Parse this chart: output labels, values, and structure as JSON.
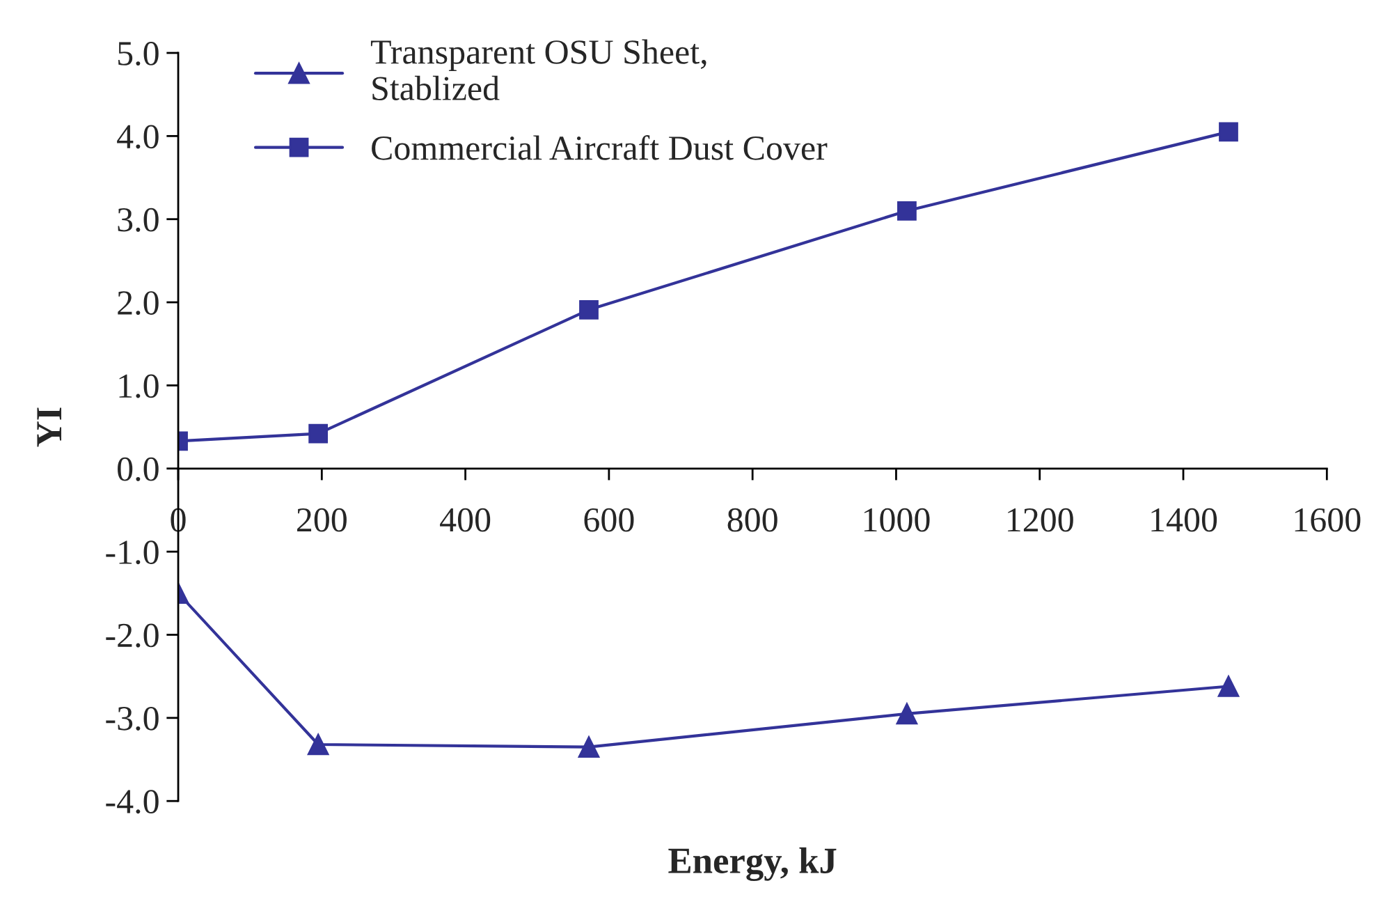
{
  "chart_data": {
    "type": "line",
    "xlabel": "Energy, kJ",
    "ylabel": "YI",
    "x": [
      0,
      195,
      572,
      1015,
      1463
    ],
    "series": [
      {
        "name": "Transparent OSU Sheet,\nStablized",
        "color": "#333399",
        "marker": "triangle",
        "values": [
          -1.5,
          -3.32,
          -3.35,
          -2.95,
          -2.62
        ]
      },
      {
        "name": "Commercial Aircraft Dust Cover",
        "color": "#333399",
        "marker": "square",
        "values": [
          0.33,
          0.42,
          1.91,
          3.1,
          4.05
        ]
      }
    ],
    "xlim": [
      0,
      1600
    ],
    "xticks": [
      0,
      200,
      400,
      600,
      800,
      1000,
      1200,
      1400,
      1600
    ],
    "ylim": [
      -4.0,
      5.0
    ],
    "yticks": [
      {
        "value": -4,
        "label": "-4.0"
      },
      {
        "value": -3,
        "label": "-3.0"
      },
      {
        "value": -2,
        "label": "-2.0"
      },
      {
        "value": -1,
        "label": "-1.0"
      },
      {
        "value": 0,
        "label": "0.0"
      },
      {
        "value": 1,
        "label": "1.0"
      },
      {
        "value": 2,
        "label": "2.0"
      },
      {
        "value": 3,
        "label": "3.0"
      },
      {
        "value": 4,
        "label": "4.0"
      },
      {
        "value": 5,
        "label": "5.0"
      }
    ],
    "grid": false,
    "legend": "top left",
    "line_style": "solid"
  }
}
